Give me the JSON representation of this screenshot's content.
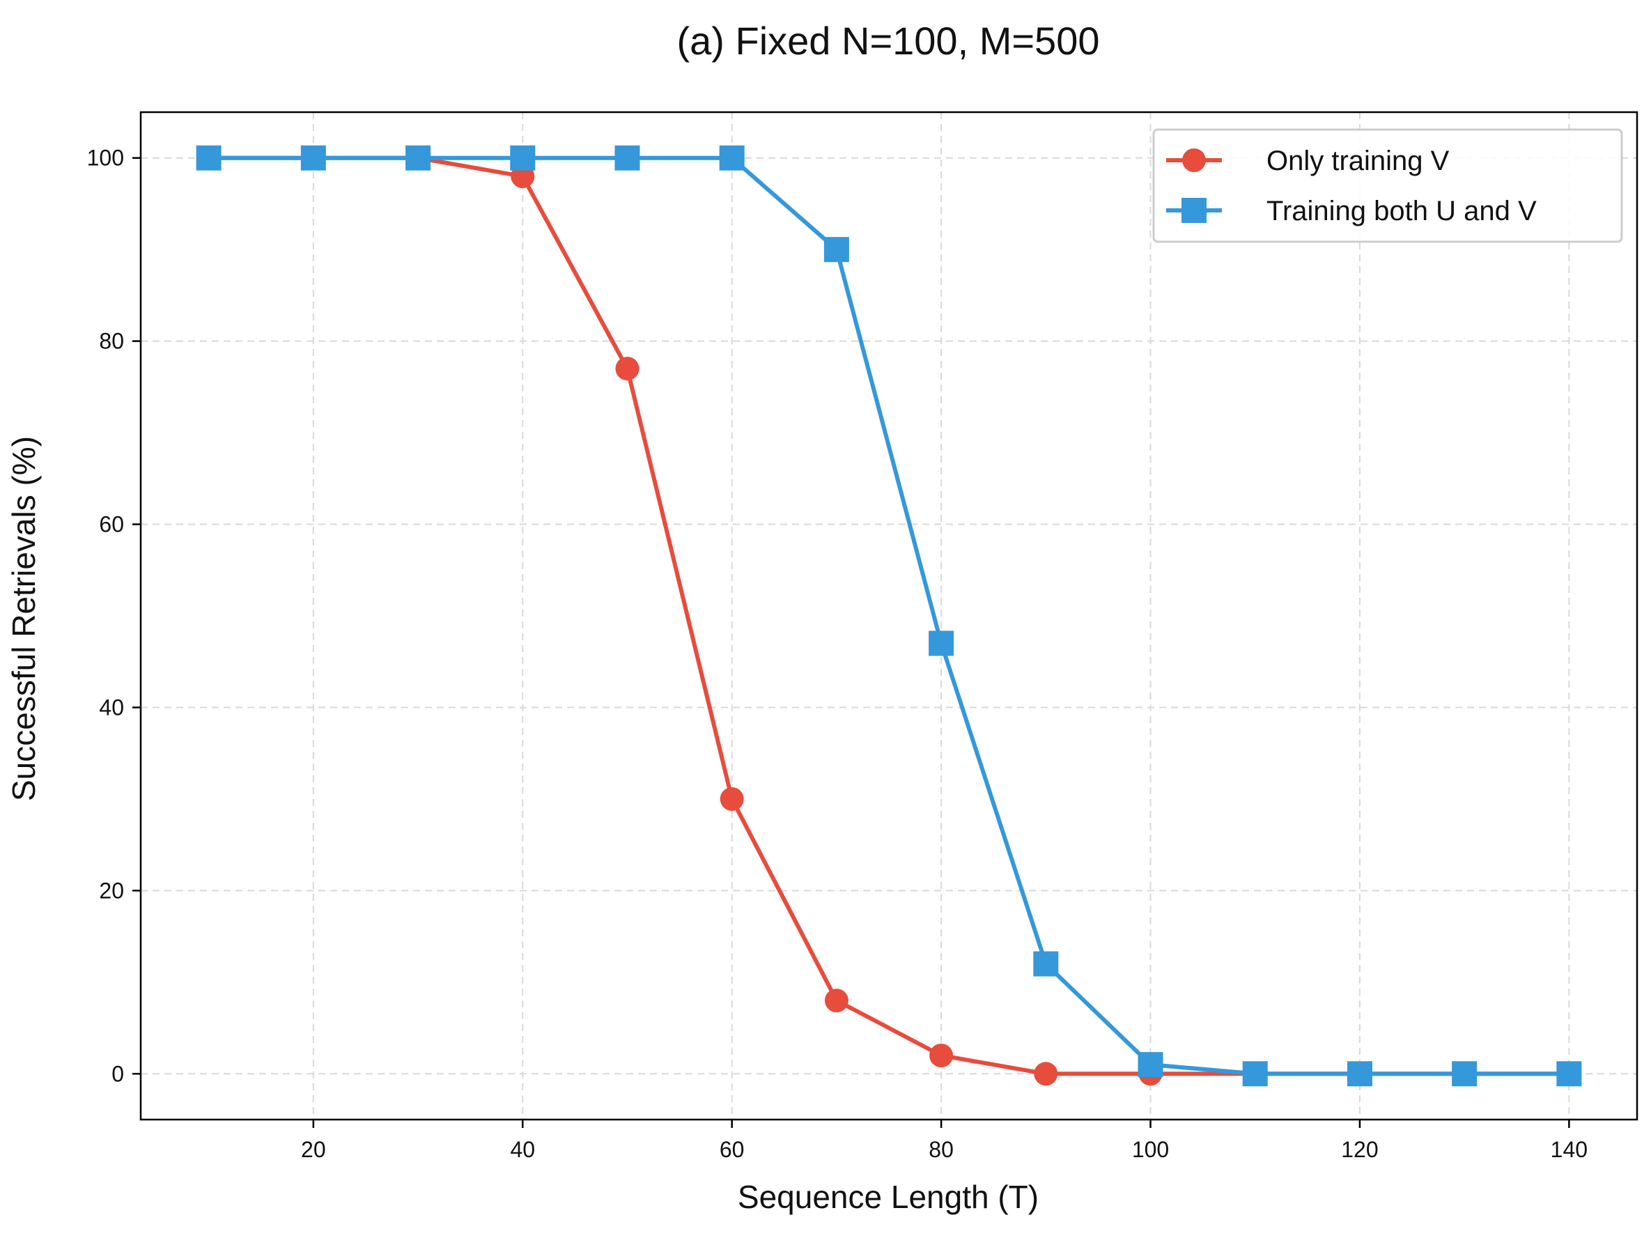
{
  "chart_data": {
    "type": "line",
    "title": "(a) Fixed N=100, M=500",
    "xlabel": "Sequence Length (T)",
    "ylabel": "Successful Retrievals (%)",
    "xlim": [
      3.5,
      146.5
    ],
    "ylim": [
      -5,
      105
    ],
    "xticks": [
      20,
      40,
      60,
      80,
      100,
      120,
      140
    ],
    "yticks": [
      0,
      20,
      40,
      60,
      80,
      100
    ],
    "grid": true,
    "legend_position": "top-right",
    "x": [
      10,
      20,
      30,
      40,
      50,
      60,
      70,
      80,
      90,
      100,
      110,
      120,
      130,
      140
    ],
    "series": [
      {
        "name": "Only training V",
        "color": "#e74c3c",
        "marker": "circle",
        "values": [
          100,
          100,
          100,
          98,
          77,
          30,
          8,
          2,
          0,
          0,
          0,
          0,
          0,
          0
        ]
      },
      {
        "name": "Training both U and V",
        "color": "#3498db",
        "marker": "square",
        "values": [
          100,
          100,
          100,
          100,
          100,
          100,
          90,
          47,
          12,
          1,
          0,
          0,
          0,
          0
        ]
      }
    ]
  }
}
